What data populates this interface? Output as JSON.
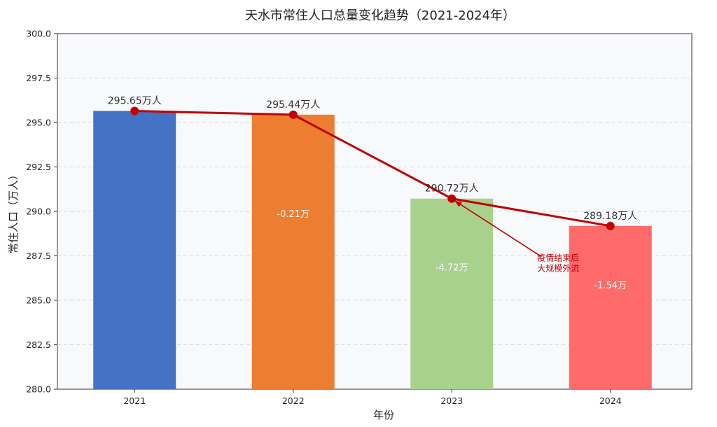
{
  "chart_data": {
    "type": "bar",
    "title": "天水市常住人口总量变化趋势（2021-2024年）",
    "xlabel": "年份",
    "ylabel": "常住人口（万人）",
    "ylim": [
      280.0,
      300.0
    ],
    "yticks": [
      "280.0",
      "282.5",
      "285.0",
      "287.5",
      "290.0",
      "292.5",
      "295.0",
      "297.5",
      "300.0"
    ],
    "categories": [
      "2021",
      "2022",
      "2023",
      "2024"
    ],
    "values": [
      295.65,
      295.44,
      290.72,
      289.18
    ],
    "value_labels": [
      "295.65万人",
      "295.44万人",
      "290.72万人",
      "289.18万人"
    ],
    "change_labels": [
      "",
      "-0.21万",
      "-4.72万",
      "-1.54万"
    ],
    "bar_colors": [
      "#4472c4",
      "#ed7d31",
      "#a9d18e",
      "#ff6b6b"
    ],
    "line_color": "#c00000",
    "grid": true,
    "annotation": {
      "lines": [
        "疫情结束后",
        "大规模外流"
      ],
      "target_index": 2,
      "color": "#c00000"
    }
  }
}
